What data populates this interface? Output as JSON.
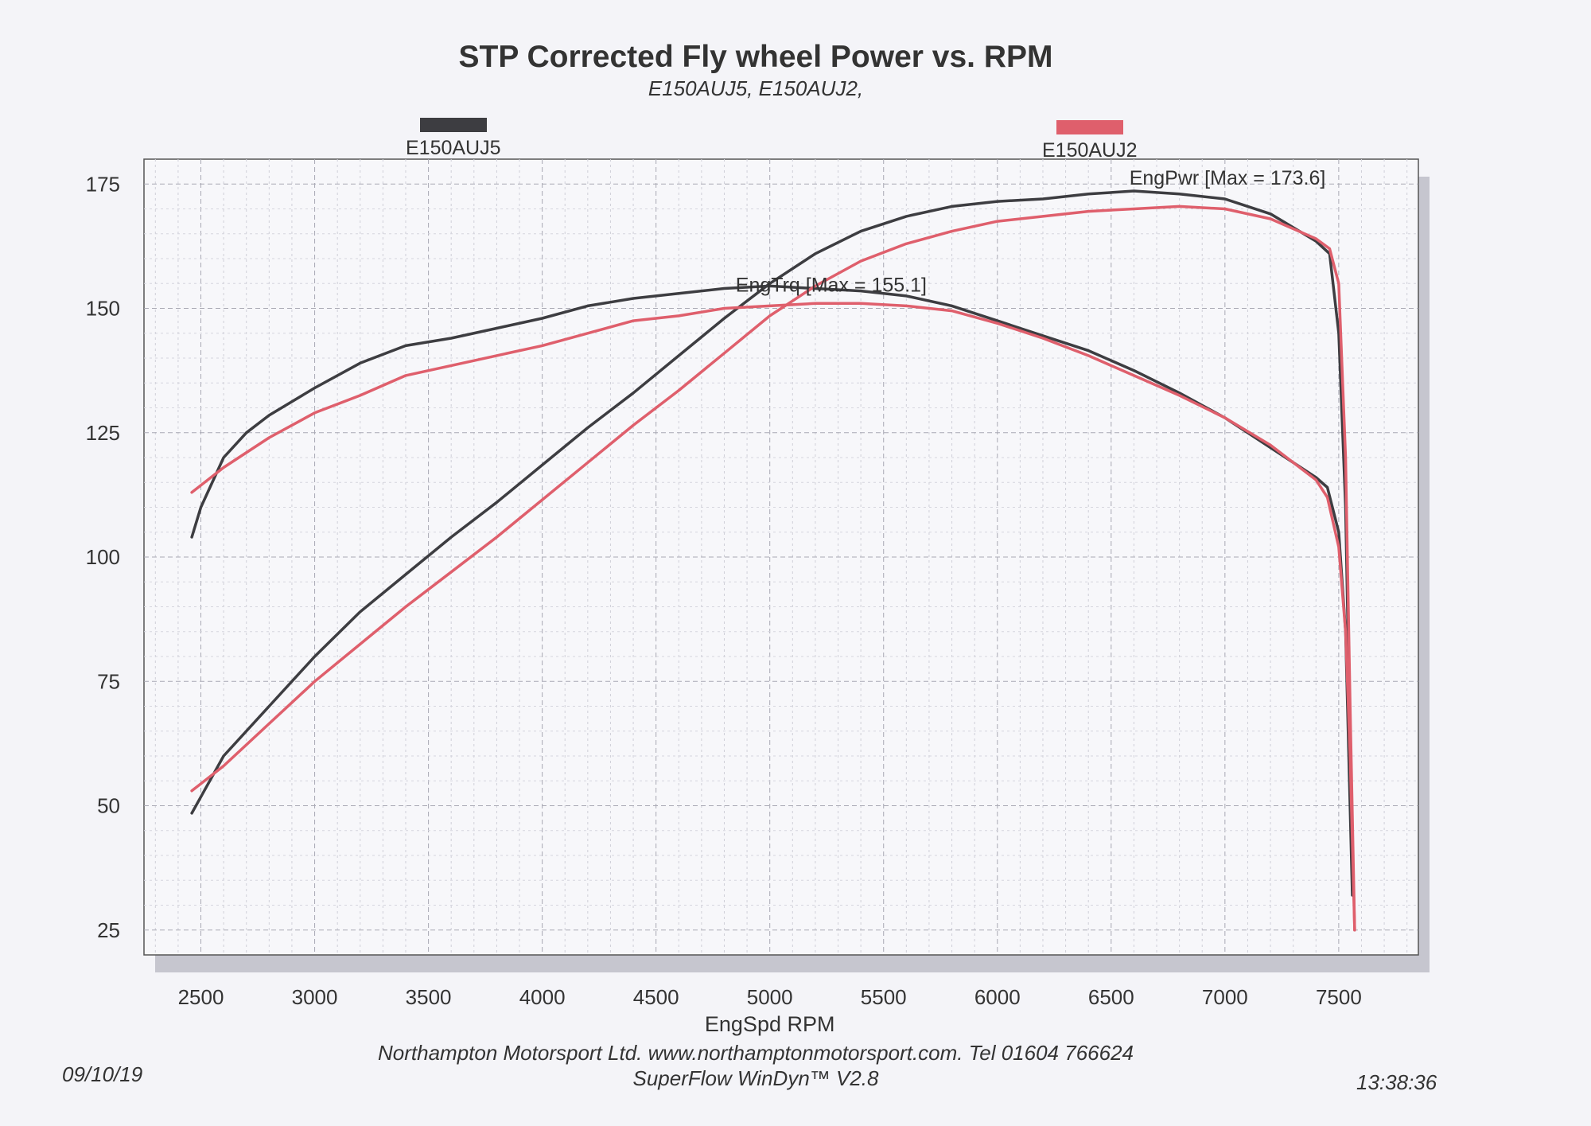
{
  "title": "STP Corrected Fly wheel Power vs. RPM",
  "subtitle": "E150AUJ5, E150AUJ2,",
  "legend": [
    {
      "label": "E150AUJ5",
      "color": "#3d3d41"
    },
    {
      "label": "E150AUJ2",
      "color": "#df5f6c"
    }
  ],
  "annotations": {
    "power_max": "EngPwr [Max = 173.6]",
    "torque_max": "EngTrq [Max = 155.1]"
  },
  "footer": {
    "date": "09/10/19",
    "company": "Northampton Motorsport Ltd.  www.northamptonmotorsport.com.  Tel 01604 766624",
    "software": "SuperFlow WinDyn™ V2.8",
    "time": "13:38:36"
  },
  "chart_data": {
    "type": "line",
    "title": "STP Corrected Fly wheel Power vs. RPM",
    "xlabel": "EngSpd  RPM",
    "ylabel": "",
    "xlim": [
      2250,
      7850
    ],
    "ylim": [
      20,
      180
    ],
    "xticks": [
      2500,
      3000,
      3500,
      4000,
      4500,
      5000,
      5500,
      6000,
      6500,
      7000,
      7500
    ],
    "yticks": [
      25,
      50,
      75,
      100,
      125,
      150,
      175
    ],
    "grid": true,
    "legend_position": "top",
    "series": [
      {
        "name": "E150AUJ5",
        "quantity": "EngPwr",
        "color": "#3d3d41",
        "points": [
          [
            2460,
            48.5
          ],
          [
            2600,
            60
          ],
          [
            2800,
            70
          ],
          [
            3000,
            80
          ],
          [
            3200,
            89
          ],
          [
            3400,
            96.5
          ],
          [
            3600,
            104
          ],
          [
            3800,
            111
          ],
          [
            4000,
            118.5
          ],
          [
            4200,
            126
          ],
          [
            4400,
            133
          ],
          [
            4600,
            140.5
          ],
          [
            4800,
            148
          ],
          [
            5000,
            155
          ],
          [
            5200,
            161
          ],
          [
            5400,
            165.5
          ],
          [
            5600,
            168.5
          ],
          [
            5800,
            170.5
          ],
          [
            6000,
            171.5
          ],
          [
            6200,
            172
          ],
          [
            6400,
            173
          ],
          [
            6600,
            173.6
          ],
          [
            6800,
            173
          ],
          [
            7000,
            172
          ],
          [
            7200,
            169
          ],
          [
            7400,
            163.5
          ],
          [
            7460,
            161
          ],
          [
            7500,
            145
          ],
          [
            7530,
            110
          ],
          [
            7555,
            50
          ],
          [
            7560,
            33
          ]
        ]
      },
      {
        "name": "E150AUJ5",
        "quantity": "EngTrq",
        "color": "#3d3d41",
        "points": [
          [
            2460,
            104
          ],
          [
            2500,
            110
          ],
          [
            2600,
            120
          ],
          [
            2700,
            125
          ],
          [
            2800,
            128.5
          ],
          [
            3000,
            134
          ],
          [
            3200,
            139
          ],
          [
            3400,
            142.5
          ],
          [
            3600,
            144
          ],
          [
            3800,
            146
          ],
          [
            4000,
            148
          ],
          [
            4200,
            150.5
          ],
          [
            4400,
            152
          ],
          [
            4600,
            153
          ],
          [
            4800,
            154
          ],
          [
            5000,
            154.5
          ],
          [
            5200,
            154
          ],
          [
            5400,
            153.5
          ],
          [
            5600,
            152.5
          ],
          [
            5800,
            150.5
          ],
          [
            6000,
            147.5
          ],
          [
            6200,
            144.5
          ],
          [
            6400,
            141.5
          ],
          [
            6600,
            137.5
          ],
          [
            6800,
            133
          ],
          [
            7000,
            128
          ],
          [
            7200,
            122
          ],
          [
            7400,
            116
          ],
          [
            7450,
            114
          ],
          [
            7500,
            105
          ],
          [
            7530,
            85
          ],
          [
            7560,
            32
          ]
        ]
      },
      {
        "name": "E150AUJ2",
        "quantity": "EngPwr",
        "color": "#df5f6c",
        "points": [
          [
            2460,
            53
          ],
          [
            2600,
            58
          ],
          [
            2800,
            66.5
          ],
          [
            3000,
            75
          ],
          [
            3200,
            82.5
          ],
          [
            3400,
            90
          ],
          [
            3600,
            97
          ],
          [
            3800,
            104
          ],
          [
            4000,
            111.5
          ],
          [
            4200,
            119
          ],
          [
            4400,
            126.5
          ],
          [
            4600,
            133.5
          ],
          [
            4800,
            141
          ],
          [
            5000,
            148.5
          ],
          [
            5200,
            154.5
          ],
          [
            5400,
            159.5
          ],
          [
            5600,
            163
          ],
          [
            5800,
            165.5
          ],
          [
            6000,
            167.5
          ],
          [
            6200,
            168.5
          ],
          [
            6400,
            169.5
          ],
          [
            6600,
            170
          ],
          [
            6800,
            170.5
          ],
          [
            7000,
            170
          ],
          [
            7200,
            168
          ],
          [
            7400,
            164
          ],
          [
            7460,
            162
          ],
          [
            7500,
            155
          ],
          [
            7530,
            120
          ],
          [
            7550,
            70
          ],
          [
            7570,
            25
          ]
        ]
      },
      {
        "name": "E150AUJ2",
        "quantity": "EngTrq",
        "color": "#df5f6c",
        "points": [
          [
            2460,
            113
          ],
          [
            2600,
            118
          ],
          [
            2800,
            124
          ],
          [
            3000,
            129
          ],
          [
            3200,
            132.5
          ],
          [
            3400,
            136.5
          ],
          [
            3600,
            138.5
          ],
          [
            3800,
            140.5
          ],
          [
            4000,
            142.5
          ],
          [
            4200,
            145
          ],
          [
            4400,
            147.5
          ],
          [
            4600,
            148.5
          ],
          [
            4800,
            150
          ],
          [
            5000,
            150.5
          ],
          [
            5200,
            151
          ],
          [
            5400,
            151
          ],
          [
            5600,
            150.5
          ],
          [
            5800,
            149.5
          ],
          [
            6000,
            147
          ],
          [
            6200,
            144
          ],
          [
            6400,
            140.5
          ],
          [
            6600,
            136.5
          ],
          [
            6800,
            132.5
          ],
          [
            7000,
            128
          ],
          [
            7200,
            122.5
          ],
          [
            7400,
            115.5
          ],
          [
            7450,
            112
          ],
          [
            7500,
            102
          ],
          [
            7530,
            85
          ],
          [
            7550,
            60
          ],
          [
            7570,
            25
          ]
        ]
      }
    ]
  }
}
